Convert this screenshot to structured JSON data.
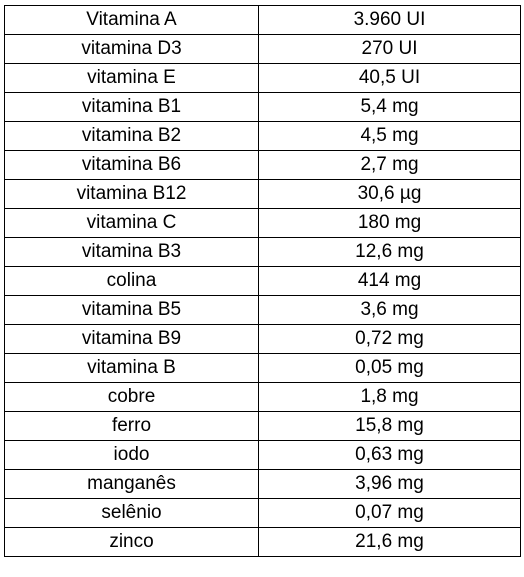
{
  "table": {
    "rows": [
      {
        "nutrient": "Vitamina A",
        "amount": "3.960 UI"
      },
      {
        "nutrient": "vitamina D3",
        "amount": "270 UI"
      },
      {
        "nutrient": "vitamina E",
        "amount": "40,5 UI"
      },
      {
        "nutrient": "vitamina B1",
        "amount": "5,4 mg"
      },
      {
        "nutrient": "vitamina B2",
        "amount": "4,5 mg"
      },
      {
        "nutrient": "vitamina B6",
        "amount": "2,7 mg"
      },
      {
        "nutrient": "vitamina B12",
        "amount": "30,6 µg"
      },
      {
        "nutrient": "vitamina C",
        "amount": "180 mg"
      },
      {
        "nutrient": "vitamina B3",
        "amount": "12,6 mg"
      },
      {
        "nutrient": "colina",
        "amount": "414 mg"
      },
      {
        "nutrient": "vitamina B5",
        "amount": "3,6 mg"
      },
      {
        "nutrient": "vitamina B9",
        "amount": "0,72 mg"
      },
      {
        "nutrient": "vitamina B",
        "amount": "0,05 mg"
      },
      {
        "nutrient": "cobre",
        "amount": "1,8 mg"
      },
      {
        "nutrient": "ferro",
        "amount": "15,8 mg"
      },
      {
        "nutrient": "iodo",
        "amount": "0,63 mg"
      },
      {
        "nutrient": "manganês",
        "amount": "3,96 mg"
      },
      {
        "nutrient": "selênio",
        "amount": "0,07 mg"
      },
      {
        "nutrient": "zinco",
        "amount": "21,6 mg"
      }
    ]
  }
}
